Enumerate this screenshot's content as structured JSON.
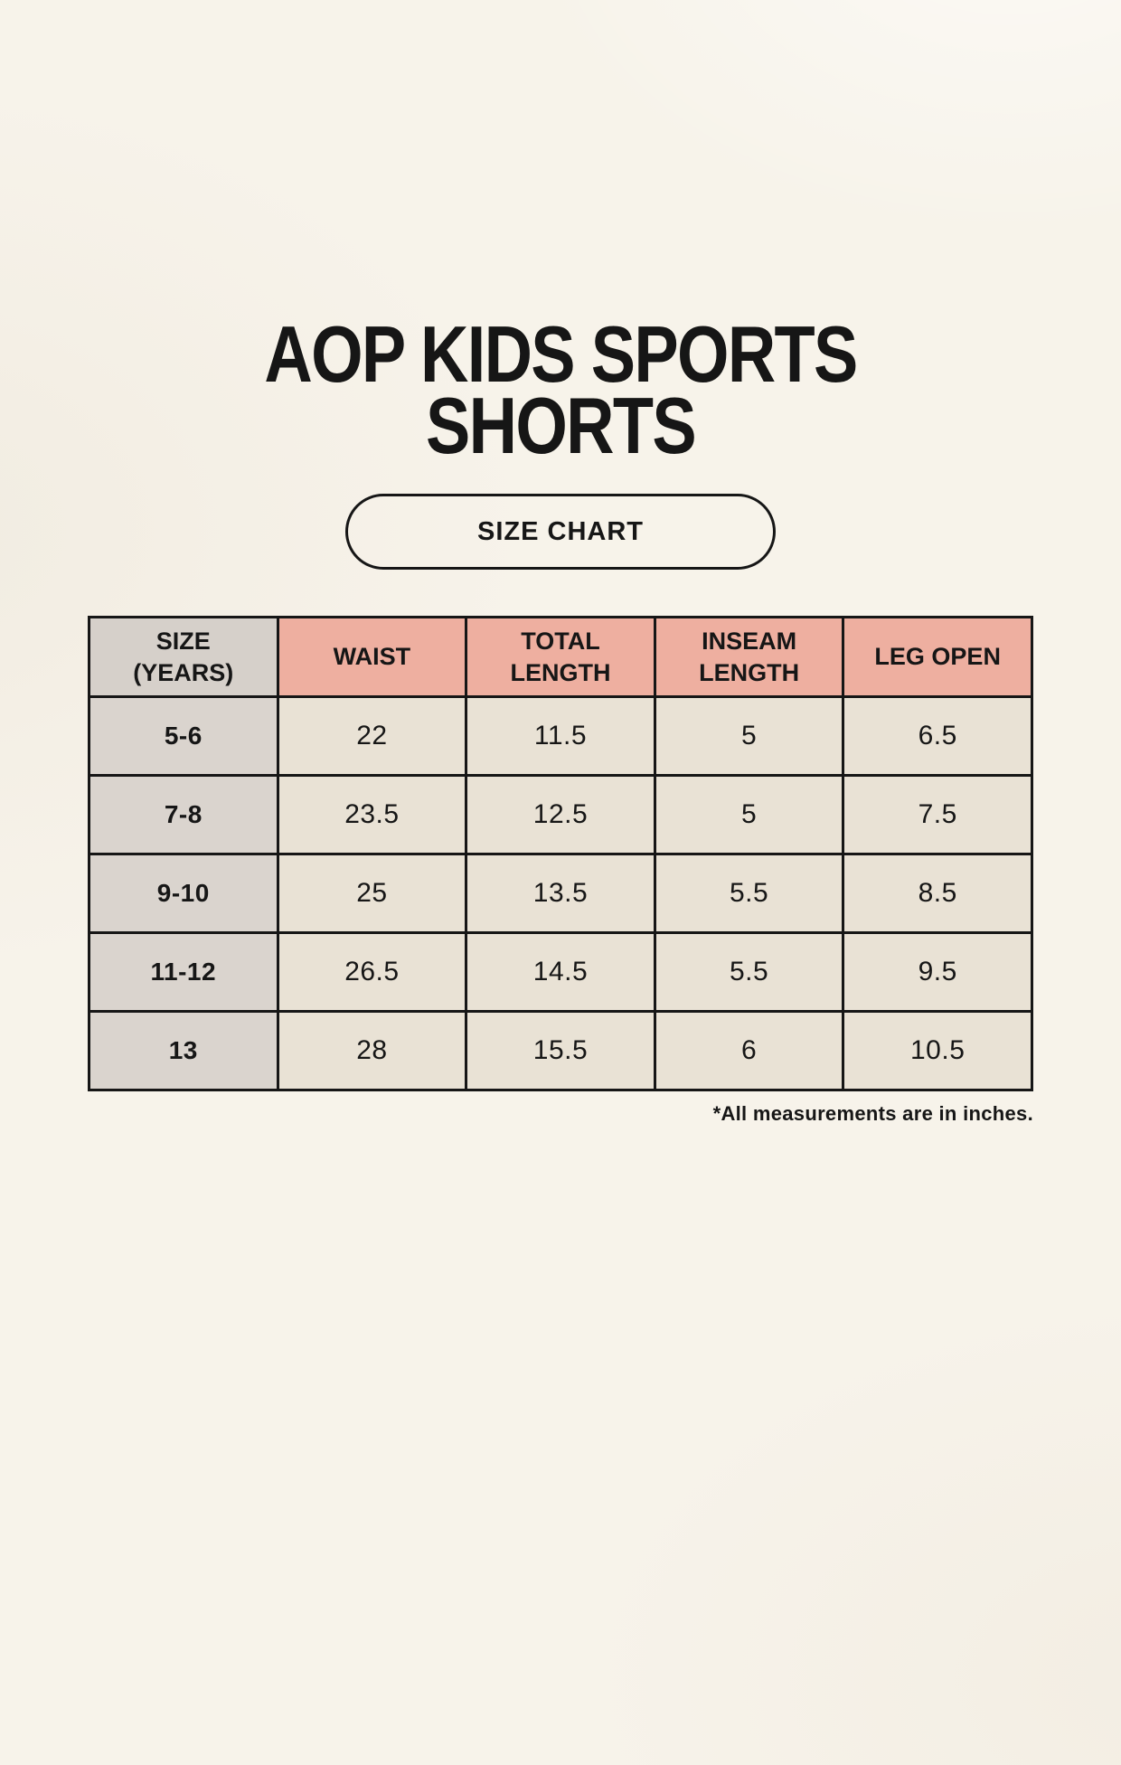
{
  "page": {
    "title": "AOP KIDS SPORTS SHORTS",
    "badge_label": "SIZE CHART",
    "footnote": "*All measurements are in inches."
  },
  "table": {
    "headers": [
      "SIZE\n(YEARS)",
      "WAIST",
      "TOTAL\nLENGTH",
      "INSEAM\nLENGTH",
      "LEG OPEN"
    ],
    "rows": [
      {
        "label": "5-6",
        "values": [
          "22",
          "11.5",
          "5",
          "6.5"
        ]
      },
      {
        "label": "7-8",
        "values": [
          "23.5",
          "12.5",
          "5",
          "7.5"
        ]
      },
      {
        "label": "9-10",
        "values": [
          "25",
          "13.5",
          "5.5",
          "8.5"
        ]
      },
      {
        "label": "11-12",
        "values": [
          "26.5",
          "14.5",
          "5.5",
          "9.5"
        ]
      },
      {
        "label": "13",
        "values": [
          "28",
          "15.5",
          "6",
          "10.5"
        ]
      }
    ]
  },
  "colors": {
    "background": "#f7f3ea",
    "header_pink": "#eeafa0",
    "header_size_gray": "#d6d0ca",
    "row_label_gray": "#dad4ce",
    "cell_beige": "#e9e2d5",
    "border": "#161616",
    "text": "#161616"
  }
}
